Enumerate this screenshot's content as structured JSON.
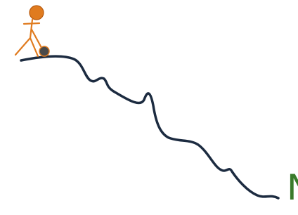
{
  "illustration": {
    "letter": "N"
  }
}
